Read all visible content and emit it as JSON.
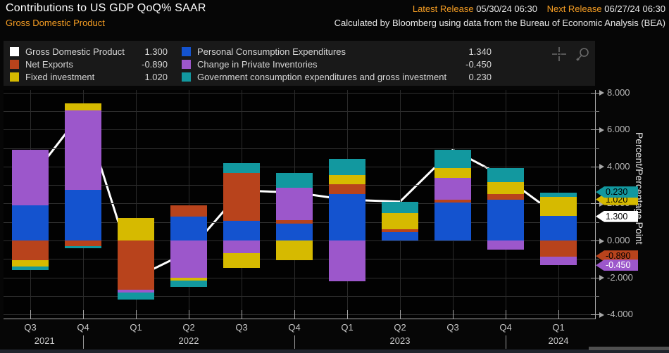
{
  "header": {
    "title": "Contributions to US GDP QoQ% SAAR",
    "subtitle": "Gross Domestic Product",
    "latest_release_label": "Latest Release",
    "latest_release_value": "05/30/24 06:30",
    "next_release_label": "Next Release",
    "next_release_value": "06/27/24 06:30",
    "source_note": "Calculated by Bloomberg using data from the Bureau of Economic Analysis (BEA)"
  },
  "legend": {
    "left_column": [
      {
        "label": "Gross Domestic Product",
        "value": "1.300",
        "color": "#ffffff"
      },
      {
        "label": "Net Exports",
        "value": "-0.890",
        "color": "#b8431c"
      },
      {
        "label": "Fixed investment",
        "value": "1.020",
        "color": "#d6ba00"
      }
    ],
    "right_column": [
      {
        "label": "Personal Consumption Expenditures",
        "value": "1.340",
        "color": "#1453cf"
      },
      {
        "label": "Change in Private Inventories",
        "value": "-0.450",
        "color": "#9c57cb"
      },
      {
        "label": "Government consumption expenditures and gross investment",
        "value": "0.230",
        "color": "#12989f"
      }
    ]
  },
  "tools": {
    "crosshair": "crosshair-tool",
    "zoom": "zoom-tool"
  },
  "chart_data": {
    "type": "bar",
    "subtype": "stacked-bar-with-line-overlay",
    "title": "Contributions to US GDP QoQ% SAAR",
    "ylabel": "Percent/Percentage Point",
    "ylim": [
      -4.5,
      8.15
    ],
    "yticks_labeled": [
      8,
      6,
      4,
      2,
      0,
      -2,
      -4
    ],
    "ytick_format": "0.000",
    "grid": true,
    "categories": [
      "Q3 2021",
      "Q4 2021",
      "Q1 2022",
      "Q2 2022",
      "Q3 2022",
      "Q4 2022",
      "Q1 2023",
      "Q2 2023",
      "Q3 2023",
      "Q4 2023",
      "Q1 2024"
    ],
    "quarter_labels": [
      "Q3",
      "Q4",
      "Q1",
      "Q2",
      "Q3",
      "Q4",
      "Q1",
      "Q2",
      "Q3",
      "Q4",
      "Q1"
    ],
    "years": [
      {
        "label": "2021",
        "tick_index": 0.27
      },
      {
        "label": "2022",
        "tick_index": 3
      },
      {
        "label": "2023",
        "tick_index": 7
      },
      {
        "label": "2024",
        "tick_index": 10
      }
    ],
    "year_divider_tick_indices": [
      1,
      5,
      9
    ],
    "series": [
      {
        "key": "pce",
        "label": "Personal Consumption Expenditures",
        "color": "#1453cf",
        "values": [
          1.9,
          2.75,
          0.0,
          1.3,
          1.05,
          0.9,
          2.5,
          0.45,
          2.05,
          2.2,
          1.34
        ]
      },
      {
        "key": "net-exports",
        "label": "Net Exports",
        "color": "#b8431c",
        "values": [
          -1.05,
          -0.3,
          -2.65,
          0.6,
          2.6,
          0.2,
          0.55,
          0.15,
          0.15,
          0.3,
          -0.89
        ]
      },
      {
        "key": "inventories",
        "label": "Change in Private Inventories",
        "color": "#9c57cb",
        "values": [
          3.0,
          4.3,
          -0.15,
          -2.0,
          -0.7,
          1.75,
          -2.2,
          0.0,
          1.2,
          -0.5,
          -0.45
        ]
      },
      {
        "key": "fixed-investment",
        "label": "Fixed investment",
        "color": "#d6ba00",
        "values": [
          -0.35,
          0.35,
          1.2,
          -0.15,
          -0.8,
          -1.05,
          0.5,
          0.9,
          0.5,
          0.65,
          1.02
        ]
      },
      {
        "key": "government",
        "label": "Government consumption expenditures and gross investment",
        "color": "#12989f",
        "values": [
          -0.2,
          -0.1,
          -0.4,
          -0.35,
          0.55,
          0.8,
          0.85,
          0.6,
          1.0,
          0.75,
          0.23
        ]
      }
    ],
    "line": {
      "key": "gdp",
      "label": "Gross Domestic Product",
      "color": "#ffffff",
      "values": [
        3.3,
        7.0,
        -2.0,
        -0.6,
        2.7,
        2.6,
        2.2,
        2.1,
        4.9,
        3.4,
        1.3
      ]
    },
    "axis_tags": [
      {
        "label": "1.020",
        "color": "#d6ba00",
        "text_color": "#000000",
        "anchor": 2.22,
        "layer": 1
      },
      {
        "label": "0.230",
        "color": "#12989f",
        "text_color": "#000000",
        "anchor": 2.62,
        "layer": 2
      },
      {
        "label": "1.300",
        "color": "#ffffff",
        "text_color": "#000000",
        "anchor": 1.3,
        "layer": 2
      },
      {
        "label": "-0.890",
        "color": "#b8431c",
        "text_color": "#000000",
        "anchor": -0.84,
        "layer": 1
      },
      {
        "label": "-0.450",
        "color": "#9c57cb",
        "text_color": "#ffffff",
        "anchor": -1.34,
        "layer": 2
      }
    ]
  }
}
